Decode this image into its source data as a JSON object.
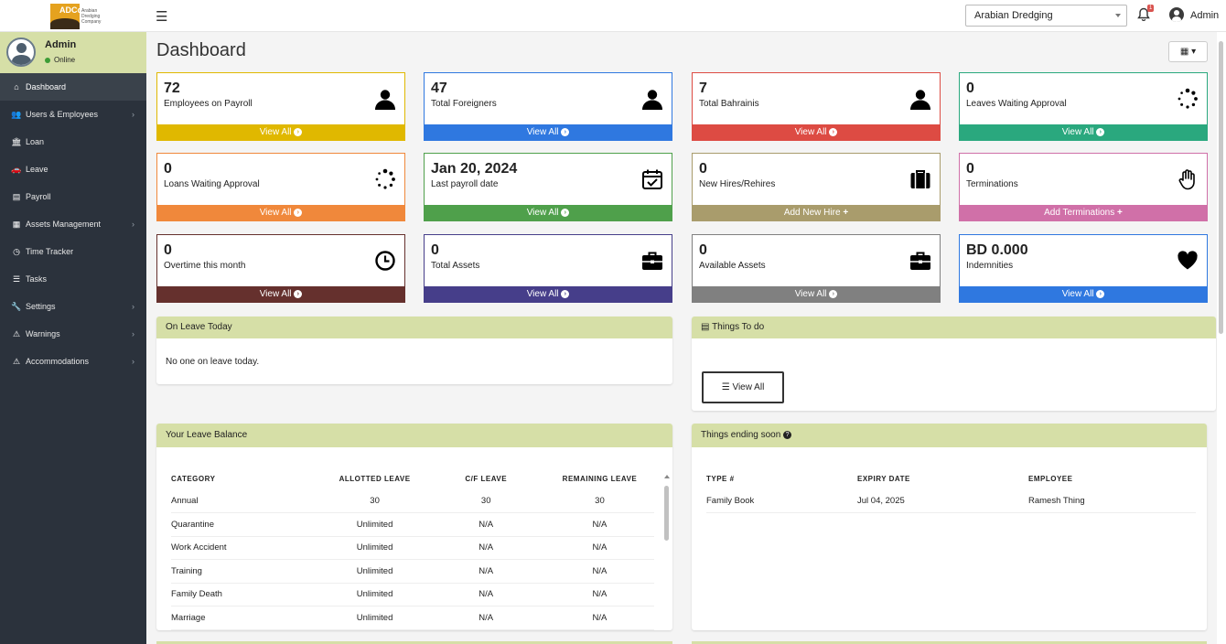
{
  "header": {
    "logo_abbr": "ADCo",
    "logo_caption": "Arabian Dredging Company",
    "company_select": "Arabian Dredging",
    "notification_count": "1",
    "user_name": "Admin"
  },
  "sidebar": {
    "user": {
      "name": "Admin",
      "status": "Online"
    },
    "items": [
      {
        "label": "Dashboard",
        "icon": "home-icon",
        "glyph": "⌂",
        "active": true,
        "has_children": false
      },
      {
        "label": "Users & Employees",
        "icon": "users-icon",
        "glyph": "👥",
        "has_children": true
      },
      {
        "label": "Loan",
        "icon": "bank-icon",
        "glyph": "🏛",
        "has_children": false
      },
      {
        "label": "Leave",
        "icon": "car-icon",
        "glyph": "🚗",
        "has_children": false
      },
      {
        "label": "Payroll",
        "icon": "payroll-icon",
        "glyph": "▤",
        "has_children": false
      },
      {
        "label": "Assets Management",
        "icon": "assets-icon",
        "glyph": "▦",
        "has_children": true
      },
      {
        "label": "Time Tracker",
        "icon": "clock-icon",
        "glyph": "◷",
        "has_children": false
      },
      {
        "label": "Tasks",
        "icon": "tasks-icon",
        "glyph": "☰",
        "has_children": false
      },
      {
        "label": "Settings",
        "icon": "wrench-icon",
        "glyph": "🔧",
        "has_children": true
      },
      {
        "label": "Warnings",
        "icon": "warning-icon",
        "glyph": "⚠",
        "has_children": true
      },
      {
        "label": "Accommodations",
        "icon": "warning-icon",
        "glyph": "⚠",
        "has_children": true
      }
    ]
  },
  "main": {
    "title": "Dashboard",
    "calendar_caret": "▾"
  },
  "cards": [
    {
      "value": "72",
      "label": "Employees on Payroll",
      "footer": "View All",
      "color": "#e0b800",
      "icon": "user-icon"
    },
    {
      "value": "47",
      "label": "Total Foreigners",
      "footer": "View All",
      "color": "#2f78e0",
      "icon": "user-icon"
    },
    {
      "value": "7",
      "label": "Total Bahrainis",
      "footer": "View All",
      "color": "#dd4b43",
      "icon": "user-icon"
    },
    {
      "value": "0",
      "label": "Leaves Waiting Approval",
      "footer": "View All",
      "color": "#2aa87e",
      "icon": "spinner-icon"
    },
    {
      "value": "0",
      "label": "Loans Waiting Approval",
      "footer": "View All",
      "color": "#f0883b",
      "icon": "spinner-icon"
    },
    {
      "value": "Jan 20, 2024",
      "label": "Last payroll date",
      "footer": "View All",
      "color": "#4fa04b",
      "icon": "calendar-check-icon"
    },
    {
      "value": "0",
      "label": "New Hires/Rehires",
      "footer": "Add New Hire",
      "color": "#a99c6c",
      "icon": "suitcase-icon"
    },
    {
      "value": "0",
      "label": "Terminations",
      "footer": "Add Terminations",
      "color": "#d070a8",
      "icon": "hand-stop-icon"
    },
    {
      "value": "0",
      "label": "Overtime this month",
      "footer": "View All",
      "color": "#65302d",
      "icon": "clock-icon"
    },
    {
      "value": "0",
      "label": "Total Assets",
      "footer": "View All",
      "color": "#463e8a",
      "icon": "briefcase-icon"
    },
    {
      "value": "0",
      "label": "Available Assets",
      "footer": "View All",
      "color": "#808080",
      "icon": "briefcase-icon"
    },
    {
      "value": "BD 0.000",
      "label": "Indemnities",
      "footer": "View All",
      "color": "#2f78e0",
      "icon": "heart-icon"
    }
  ],
  "on_leave": {
    "title": "On Leave Today",
    "message": "No one on leave today."
  },
  "todo": {
    "title": "Things To do",
    "button": "View All"
  },
  "leave_balance": {
    "title": "Your Leave Balance",
    "columns": [
      "CATEGORY",
      "ALLOTTED LEAVE",
      "C/F LEAVE",
      "REMAINING LEAVE"
    ],
    "rows": [
      [
        "Annual",
        "30",
        "30",
        "30"
      ],
      [
        "Quarantine",
        "Unlimited",
        "N/A",
        "N/A"
      ],
      [
        "Work Accident",
        "Unlimited",
        "N/A",
        "N/A"
      ],
      [
        "Training",
        "Unlimited",
        "N/A",
        "N/A"
      ],
      [
        "Family Death",
        "Unlimited",
        "N/A",
        "N/A"
      ],
      [
        "Marriage",
        "Unlimited",
        "N/A",
        "N/A"
      ]
    ]
  },
  "ending_soon": {
    "title": "Things ending soon",
    "columns": [
      "TYPE #",
      "EXPIRY DATE",
      "EMPLOYEE"
    ],
    "rows": [
      [
        "Family Book",
        "Jul 04, 2025",
        "Ramesh Thing"
      ]
    ]
  }
}
